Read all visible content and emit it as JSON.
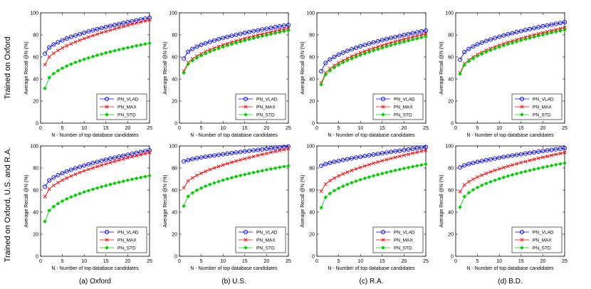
{
  "row_labels": [
    "Trained on Oxford",
    "Trained on Oxford, U.S. and R.A."
  ],
  "column_captions": [
    "(a) Oxford",
    "(b) U.S.",
    "(c) R.A.",
    "(d) B.D."
  ],
  "series_styles": [
    {
      "name": "PN_VLAD",
      "color": "#0000ff",
      "marker": "circle"
    },
    {
      "name": "PN_MAX",
      "color": "#ff0000",
      "marker": "x"
    },
    {
      "name": "PN_STD",
      "color": "#00cc00",
      "marker": "diamond"
    }
  ],
  "chart_data": [
    {
      "type": "line",
      "row": 0,
      "col": 0,
      "xlabel": "N - Number of top database candidates",
      "ylabel": "Average Recall @N (%)",
      "xlim": [
        0,
        25
      ],
      "ylim": [
        0,
        100
      ],
      "xticks": [
        0,
        5,
        10,
        15,
        20,
        25
      ],
      "yticks": [
        0,
        20,
        40,
        60,
        80,
        100
      ],
      "legend": "bottom-right",
      "x": [
        1,
        25
      ],
      "series": [
        {
          "name": "PN_VLAD",
          "v1": 63,
          "v25": 95.5,
          "shape": 0.55
        },
        {
          "name": "PN_MAX",
          "v1": 53,
          "v25": 93.5,
          "shape": 0.55
        },
        {
          "name": "PN_STD",
          "v1": 31.5,
          "v25": 72.5,
          "shape": 0.45
        }
      ]
    },
    {
      "type": "line",
      "row": 0,
      "col": 1,
      "xlabel": "N - Number of top database candidates",
      "ylabel": "Average Recall @N (%)",
      "xlim": [
        0,
        25
      ],
      "ylim": [
        0,
        100
      ],
      "xticks": [
        0,
        5,
        10,
        15,
        20,
        25
      ],
      "yticks": [
        0,
        20,
        40,
        60,
        80,
        100
      ],
      "legend": "bottom-right",
      "x": [
        1,
        25
      ],
      "series": [
        {
          "name": "PN_VLAD",
          "v1": 58.5,
          "v25": 89,
          "shape": 0.5
        },
        {
          "name": "PN_MAX",
          "v1": 47,
          "v25": 86,
          "shape": 0.5
        },
        {
          "name": "PN_STD",
          "v1": 45.5,
          "v25": 84,
          "shape": 0.5
        }
      ]
    },
    {
      "type": "line",
      "row": 0,
      "col": 2,
      "xlabel": "N - Number of top database candidates",
      "ylabel": "Average Recall @N (%)",
      "xlim": [
        0,
        25
      ],
      "ylim": [
        0,
        100
      ],
      "xticks": [
        0,
        5,
        10,
        15,
        20,
        25
      ],
      "yticks": [
        0,
        20,
        40,
        60,
        80,
        100
      ],
      "legend": "bottom-right",
      "x": [
        1,
        25
      ],
      "series": [
        {
          "name": "PN_VLAD",
          "v1": 47,
          "v25": 84,
          "shape": 0.5
        },
        {
          "name": "PN_MAX",
          "v1": 36.5,
          "v25": 81,
          "shape": 0.5
        },
        {
          "name": "PN_STD",
          "v1": 35,
          "v25": 78.5,
          "shape": 0.5
        }
      ]
    },
    {
      "type": "line",
      "row": 0,
      "col": 3,
      "xlabel": "N - Number of top database candidates",
      "ylabel": "Average Recall @N (%)",
      "xlim": [
        0,
        25
      ],
      "ylim": [
        0,
        100
      ],
      "xticks": [
        0,
        5,
        10,
        15,
        20,
        25
      ],
      "yticks": [
        0,
        20,
        40,
        60,
        80,
        100
      ],
      "legend": "bottom-right",
      "x": [
        1,
        25
      ],
      "series": [
        {
          "name": "PN_VLAD",
          "v1": 57.5,
          "v25": 91.5,
          "shape": 0.5
        },
        {
          "name": "PN_MAX",
          "v1": 45.5,
          "v25": 86.5,
          "shape": 0.5
        },
        {
          "name": "PN_STD",
          "v1": 44.5,
          "v25": 84.5,
          "shape": 0.5
        }
      ]
    },
    {
      "type": "line",
      "row": 1,
      "col": 0,
      "xlabel": "N - Number of top database candidates",
      "ylabel": "Average Recall @N (%)",
      "xlim": [
        0,
        25
      ],
      "ylim": [
        0,
        100
      ],
      "xticks": [
        0,
        5,
        10,
        15,
        20,
        25
      ],
      "yticks": [
        0,
        20,
        40,
        60,
        80,
        100
      ],
      "legend": "bottom-right",
      "x": [
        1,
        25
      ],
      "series": [
        {
          "name": "PN_VLAD",
          "v1": 63,
          "v25": 96,
          "shape": 0.55
        },
        {
          "name": "PN_MAX",
          "v1": 54,
          "v25": 94,
          "shape": 0.55
        },
        {
          "name": "PN_STD",
          "v1": 31.5,
          "v25": 73,
          "shape": 0.45
        }
      ]
    },
    {
      "type": "line",
      "row": 1,
      "col": 1,
      "xlabel": "N - Number of top database candidates",
      "ylabel": "Average Recall @N (%)",
      "xlim": [
        0,
        25
      ],
      "ylim": [
        0,
        100
      ],
      "xticks": [
        0,
        5,
        10,
        15,
        20,
        25
      ],
      "yticks": [
        0,
        20,
        40,
        60,
        80,
        100
      ],
      "legend": "bottom-right",
      "x": [
        1,
        25
      ],
      "series": [
        {
          "name": "PN_VLAD",
          "v1": 86,
          "v25": 99.5,
          "shape": 0.75
        },
        {
          "name": "PN_MAX",
          "v1": 62,
          "v25": 97.5,
          "shape": 0.55
        },
        {
          "name": "PN_STD",
          "v1": 45.5,
          "v25": 82,
          "shape": 0.45
        }
      ]
    },
    {
      "type": "line",
      "row": 1,
      "col": 2,
      "xlabel": "N - Number of top database candidates",
      "ylabel": "Average Recall @N (%)",
      "xlim": [
        0,
        25
      ],
      "ylim": [
        0,
        100
      ],
      "xticks": [
        0,
        5,
        10,
        15,
        20,
        25
      ],
      "yticks": [
        0,
        20,
        40,
        60,
        80,
        100
      ],
      "legend": "bottom-right",
      "x": [
        1,
        25
      ],
      "series": [
        {
          "name": "PN_VLAD",
          "v1": 82,
          "v25": 99,
          "shape": 0.75
        },
        {
          "name": "PN_MAX",
          "v1": 59,
          "v25": 96,
          "shape": 0.55
        },
        {
          "name": "PN_STD",
          "v1": 44,
          "v25": 83.5,
          "shape": 0.45
        }
      ]
    },
    {
      "type": "line",
      "row": 1,
      "col": 3,
      "xlabel": "N - Number of top database candidates",
      "ylabel": "Average Recall @N (%)",
      "xlim": [
        0,
        25
      ],
      "ylim": [
        0,
        100
      ],
      "xticks": [
        0,
        5,
        10,
        15,
        20,
        25
      ],
      "yticks": [
        0,
        20,
        40,
        60,
        80,
        100
      ],
      "legend": "bottom-right",
      "x": [
        1,
        25
      ],
      "series": [
        {
          "name": "PN_VLAD",
          "v1": 80.5,
          "v25": 98,
          "shape": 0.7
        },
        {
          "name": "PN_MAX",
          "v1": 58.5,
          "v25": 94,
          "shape": 0.55
        },
        {
          "name": "PN_STD",
          "v1": 44.5,
          "v25": 84.5,
          "shape": 0.45
        }
      ]
    }
  ]
}
